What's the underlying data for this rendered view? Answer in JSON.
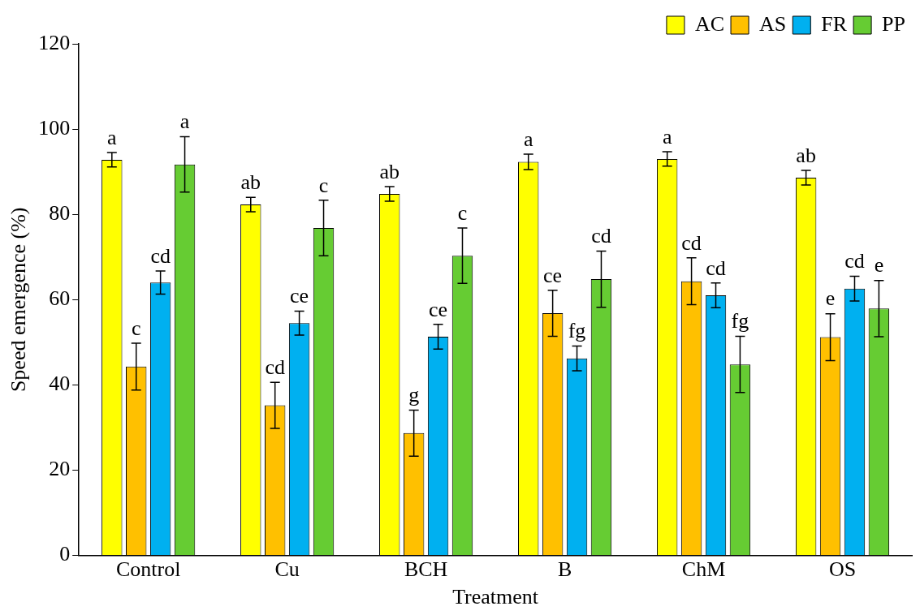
{
  "chart_data": {
    "type": "bar",
    "xlabel": "Treatment",
    "ylabel": "Speed emergence (%)",
    "categories": [
      "Control",
      "Cu",
      "BCH",
      "B",
      "ChM",
      "OS"
    ],
    "series": [
      {
        "name": "AC",
        "color": "#ffff00",
        "values": [
          92.8,
          82.3,
          84.8,
          92.3,
          93.0,
          88.6
        ],
        "errors": [
          1.7,
          1.7,
          1.7,
          1.8,
          1.7,
          1.7
        ],
        "value_labels": [
          "a",
          "ab",
          "ab",
          "a",
          "a",
          "ab"
        ]
      },
      {
        "name": "AS",
        "color": "#ffc000",
        "values": [
          44.3,
          35.2,
          28.7,
          56.8,
          64.3,
          51.2
        ],
        "errors": [
          5.5,
          5.4,
          5.4,
          5.4,
          5.5,
          5.5
        ],
        "value_labels": [
          "c",
          "cd",
          "g",
          "ce",
          "cd",
          "e"
        ]
      },
      {
        "name": "FR",
        "color": "#00b0f0",
        "values": [
          64.0,
          54.5,
          51.3,
          46.2,
          61.0,
          62.6
        ],
        "errors": [
          2.7,
          2.8,
          2.9,
          2.9,
          2.9,
          2.9
        ],
        "value_labels": [
          "cd",
          "ce",
          "ce",
          "fg",
          "cd",
          "cd"
        ]
      },
      {
        "name": "PP",
        "color": "#66cc33",
        "values": [
          91.7,
          76.8,
          70.3,
          64.8,
          44.8,
          57.9
        ],
        "errors": [
          6.5,
          6.5,
          6.5,
          6.6,
          6.6,
          6.6
        ],
        "value_labels": [
          "a",
          "c",
          "c",
          "cd",
          "fg",
          "e"
        ]
      }
    ],
    "ylim": [
      0,
      120
    ],
    "yticks": [
      0,
      20,
      40,
      60,
      80,
      100,
      120
    ],
    "grid": false,
    "legend": "top right"
  }
}
